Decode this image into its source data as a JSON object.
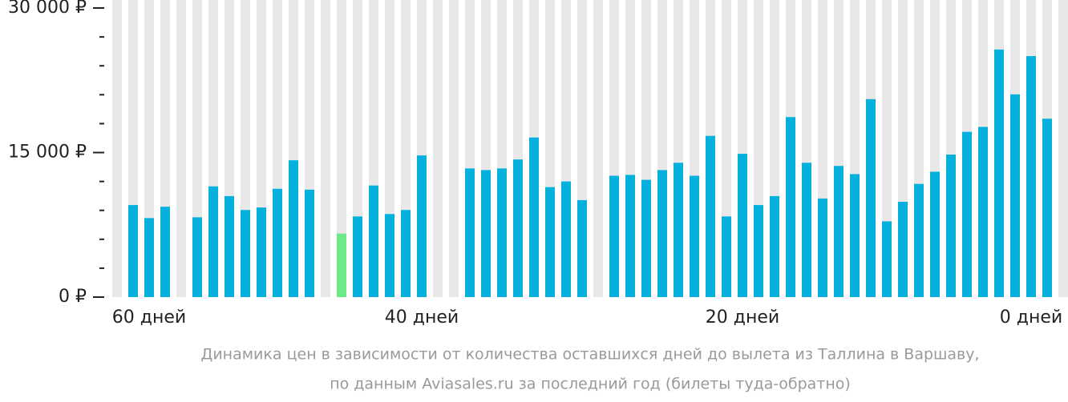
{
  "chart_data": {
    "type": "bar",
    "categories": [
      null,
      null,
      "60 дней",
      null,
      null,
      null,
      null,
      null,
      null,
      null,
      null,
      null,
      null,
      null,
      null,
      null,
      null,
      null,
      null,
      "40 дней",
      null,
      null,
      null,
      null,
      null,
      null,
      null,
      null,
      null,
      null,
      null,
      null,
      null,
      null,
      null,
      null,
      null,
      null,
      null,
      "20 дней",
      null,
      null,
      null,
      null,
      null,
      null,
      null,
      null,
      null,
      null,
      null,
      null,
      null,
      null,
      null,
      null,
      null,
      "0 дней",
      null,
      null
    ],
    "values": [
      null,
      9550,
      8200,
      9380,
      null,
      8280,
      11490,
      10480,
      9040,
      9300,
      11240,
      14200,
      11150,
      null,
      6590,
      8370,
      11580,
      8620,
      9040,
      14700,
      null,
      null,
      13350,
      13180,
      13350,
      14280,
      16560,
      11410,
      12000,
      10060,
      null,
      12590,
      12680,
      12170,
      13180,
      13940,
      12590,
      16730,
      8370,
      14870,
      9550,
      10480,
      18680,
      13940,
      10230,
      13610,
      12760,
      20540,
      7860,
      9890,
      11750,
      13010,
      14790,
      17150,
      17660,
      25690,
      21040,
      25010,
      18510,
      null
    ],
    "color": "#05b0dc",
    "highlight": {
      "index": 14,
      "color": "#6ee98a"
    },
    "stripe_color": "#e8e8e8",
    "ylim": [
      0,
      30000
    ],
    "yticks": [
      {
        "value": 0,
        "label": "0 ₽"
      },
      {
        "value": 15000,
        "label": "15 000 ₽"
      },
      {
        "value": 30000,
        "label": "30 000 ₽"
      }
    ],
    "minor_yticks": [
      3000,
      6000,
      9000,
      12000,
      18000,
      21000,
      24000,
      27000
    ],
    "caption": [
      "Динамика цен в зависимости от количества оставшихся дней до вылета из Таллина в Варшаву,",
      "по данным Aviasales.ru за последний год (билеты туда-обратно)"
    ]
  }
}
